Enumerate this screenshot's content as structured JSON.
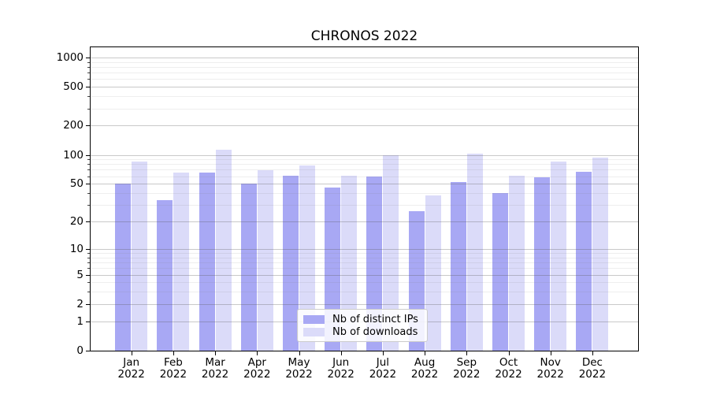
{
  "title": "CHRONOS 2022",
  "chart_data": {
    "type": "bar",
    "title": "CHRONOS 2022",
    "categories": [
      "Jan",
      "Feb",
      "Mar",
      "Apr",
      "May",
      "Jun",
      "Jul",
      "Aug",
      "Sep",
      "Oct",
      "Nov",
      "Dec"
    ],
    "year_label": "2022",
    "series": [
      {
        "name": "Nb of distinct IPs",
        "color": "#a8a8f4",
        "values": [
          50,
          34,
          66,
          50,
          61,
          46,
          60,
          26,
          52,
          40,
          58,
          67
        ]
      },
      {
        "name": "Nb of downloads",
        "color": "#dbdbf9",
        "values": [
          85,
          66,
          112,
          69,
          78,
          61,
          100,
          38,
          102,
          61,
          86,
          93
        ]
      }
    ],
    "y_axis": {
      "scale": "log1p",
      "tick_labels": [
        "1000",
        "500",
        "200",
        "100",
        "50",
        "20",
        "10",
        "5",
        "2",
        "1",
        "0"
      ],
      "tick_values": [
        1000,
        500,
        200,
        100,
        50,
        20,
        10,
        5,
        2,
        1,
        0
      ],
      "minor_tick_values": [
        3,
        4,
        6,
        7,
        8,
        9,
        30,
        40,
        60,
        70,
        80,
        90,
        300,
        400,
        600,
        700,
        800,
        900
      ],
      "ylim": [
        0,
        1260
      ]
    },
    "grid": true,
    "legend_position": "lower center",
    "colors": {
      "major_grid": "#c9c9c9",
      "minor_grid": "#ececec",
      "axis": "#000000",
      "background": "#ffffff"
    }
  }
}
